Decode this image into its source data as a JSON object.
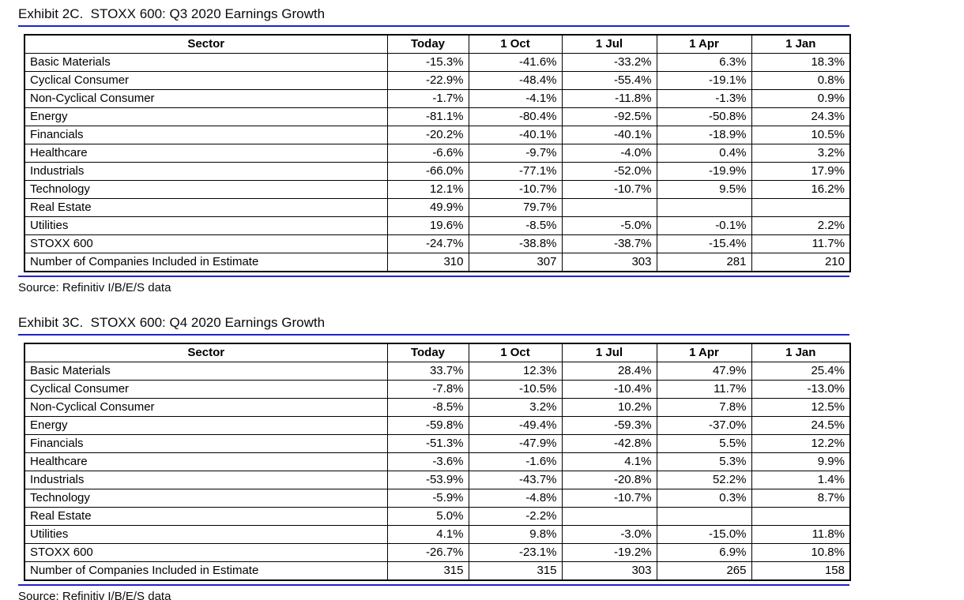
{
  "page": {
    "accent_blue": "#2222cc"
  },
  "exhibits": [
    {
      "title": "Exhibit 2C.  STOXX 600: Q3 2020 Earnings Growth",
      "columns": [
        "Sector",
        "Today",
        "1 Oct",
        "1 Jul",
        "1 Apr",
        "1 Jan"
      ],
      "rows": [
        {
          "label": "Basic Materials",
          "values": [
            "-15.3%",
            "-41.6%",
            "-33.2%",
            "6.3%",
            "18.3%"
          ]
        },
        {
          "label": "Cyclical Consumer",
          "values": [
            "-22.9%",
            "-48.4%",
            "-55.4%",
            "-19.1%",
            "0.8%"
          ]
        },
        {
          "label": "Non-Cyclical Consumer",
          "values": [
            "-1.7%",
            "-4.1%",
            "-11.8%",
            "-1.3%",
            "0.9%"
          ]
        },
        {
          "label": "Energy",
          "values": [
            "-81.1%",
            "-80.4%",
            "-92.5%",
            "-50.8%",
            "24.3%"
          ]
        },
        {
          "label": "Financials",
          "values": [
            "-20.2%",
            "-40.1%",
            "-40.1%",
            "-18.9%",
            "10.5%"
          ]
        },
        {
          "label": "Healthcare",
          "values": [
            "-6.6%",
            "-9.7%",
            "-4.0%",
            "0.4%",
            "3.2%"
          ]
        },
        {
          "label": "Industrials",
          "values": [
            "-66.0%",
            "-77.1%",
            "-52.0%",
            "-19.9%",
            "17.9%"
          ]
        },
        {
          "label": "Technology",
          "values": [
            "12.1%",
            "-10.7%",
            "-10.7%",
            "9.5%",
            "16.2%"
          ]
        },
        {
          "label": "Real Estate",
          "values": [
            "49.9%",
            "79.7%",
            "",
            "",
            ""
          ]
        },
        {
          "label": "Utilities",
          "values": [
            "19.6%",
            "-8.5%",
            "-5.0%",
            "-0.1%",
            "2.2%"
          ]
        },
        {
          "label": "STOXX 600",
          "values": [
            "-24.7%",
            "-38.8%",
            "-38.7%",
            "-15.4%",
            "11.7%"
          ]
        },
        {
          "label": "Number of Companies Included in Estimate",
          "values": [
            "310",
            "307",
            "303",
            "281",
            "210"
          ]
        }
      ],
      "source": "Source: Refinitiv I/B/E/S data"
    },
    {
      "title": "Exhibit 3C.  STOXX 600: Q4 2020 Earnings Growth",
      "columns": [
        "Sector",
        "Today",
        "1 Oct",
        "1 Jul",
        "1 Apr",
        "1 Jan"
      ],
      "rows": [
        {
          "label": "Basic Materials",
          "values": [
            "33.7%",
            "12.3%",
            "28.4%",
            "47.9%",
            "25.4%"
          ]
        },
        {
          "label": "Cyclical Consumer",
          "values": [
            "-7.8%",
            "-10.5%",
            "-10.4%",
            "11.7%",
            "-13.0%"
          ]
        },
        {
          "label": "Non-Cyclical Consumer",
          "values": [
            "-8.5%",
            "3.2%",
            "10.2%",
            "7.8%",
            "12.5%"
          ]
        },
        {
          "label": "Energy",
          "values": [
            "-59.8%",
            "-49.4%",
            "-59.3%",
            "-37.0%",
            "24.5%"
          ]
        },
        {
          "label": "Financials",
          "values": [
            "-51.3%",
            "-47.9%",
            "-42.8%",
            "5.5%",
            "12.2%"
          ]
        },
        {
          "label": "Healthcare",
          "values": [
            "-3.6%",
            "-1.6%",
            "4.1%",
            "5.3%",
            "9.9%"
          ]
        },
        {
          "label": "Industrials",
          "values": [
            "-53.9%",
            "-43.7%",
            "-20.8%",
            "52.2%",
            "1.4%"
          ]
        },
        {
          "label": "Technology",
          "values": [
            "-5.9%",
            "-4.8%",
            "-10.7%",
            "0.3%",
            "8.7%"
          ]
        },
        {
          "label": "Real Estate",
          "values": [
            "5.0%",
            "-2.2%",
            "",
            "",
            ""
          ]
        },
        {
          "label": "Utilities",
          "values": [
            "4.1%",
            "9.8%",
            "-3.0%",
            "-15.0%",
            "11.8%"
          ]
        },
        {
          "label": "STOXX 600",
          "values": [
            "-26.7%",
            "-23.1%",
            "-19.2%",
            "6.9%",
            "10.8%"
          ]
        },
        {
          "label": "Number of Companies Included in Estimate",
          "values": [
            "315",
            "315",
            "303",
            "265",
            "158"
          ]
        }
      ],
      "source": "Source: Refinitiv I/B/E/S data"
    }
  ],
  "chart_data": [
    {
      "type": "table",
      "title": "Exhibit 2C. STOXX 600: Q3 2020 Earnings Growth",
      "columns": [
        "Sector",
        "Today",
        "1 Oct",
        "1 Jul",
        "1 Apr",
        "1 Jan"
      ],
      "rows": [
        [
          "Basic Materials",
          -15.3,
          -41.6,
          -33.2,
          6.3,
          18.3
        ],
        [
          "Cyclical Consumer",
          -22.9,
          -48.4,
          -55.4,
          -19.1,
          0.8
        ],
        [
          "Non-Cyclical Consumer",
          -1.7,
          -4.1,
          -11.8,
          -1.3,
          0.9
        ],
        [
          "Energy",
          -81.1,
          -80.4,
          -92.5,
          -50.8,
          24.3
        ],
        [
          "Financials",
          -20.2,
          -40.1,
          -40.1,
          -18.9,
          10.5
        ],
        [
          "Healthcare",
          -6.6,
          -9.7,
          -4.0,
          0.4,
          3.2
        ],
        [
          "Industrials",
          -66.0,
          -77.1,
          -52.0,
          -19.9,
          17.9
        ],
        [
          "Technology",
          12.1,
          -10.7,
          -10.7,
          9.5,
          16.2
        ],
        [
          "Real Estate",
          49.9,
          79.7,
          null,
          null,
          null
        ],
        [
          "Utilities",
          19.6,
          -8.5,
          -5.0,
          -0.1,
          2.2
        ],
        [
          "STOXX 600",
          -24.7,
          -38.8,
          -38.7,
          -15.4,
          11.7
        ],
        [
          "Number of Companies Included in Estimate",
          310,
          307,
          303,
          281,
          210
        ]
      ]
    },
    {
      "type": "table",
      "title": "Exhibit 3C. STOXX 600: Q4 2020 Earnings Growth",
      "columns": [
        "Sector",
        "Today",
        "1 Oct",
        "1 Jul",
        "1 Apr",
        "1 Jan"
      ],
      "rows": [
        [
          "Basic Materials",
          33.7,
          12.3,
          28.4,
          47.9,
          25.4
        ],
        [
          "Cyclical Consumer",
          -7.8,
          -10.5,
          -10.4,
          11.7,
          -13.0
        ],
        [
          "Non-Cyclical Consumer",
          -8.5,
          3.2,
          10.2,
          7.8,
          12.5
        ],
        [
          "Energy",
          -59.8,
          -49.4,
          -59.3,
          -37.0,
          24.5
        ],
        [
          "Financials",
          -51.3,
          -47.9,
          -42.8,
          5.5,
          12.2
        ],
        [
          "Healthcare",
          -3.6,
          -1.6,
          4.1,
          5.3,
          9.9
        ],
        [
          "Industrials",
          -53.9,
          -43.7,
          -20.8,
          52.2,
          1.4
        ],
        [
          "Technology",
          -5.9,
          -4.8,
          -10.7,
          0.3,
          8.7
        ],
        [
          "Real Estate",
          5.0,
          -2.2,
          null,
          null,
          null
        ],
        [
          "Utilities",
          4.1,
          9.8,
          -3.0,
          -15.0,
          11.8
        ],
        [
          "STOXX 600",
          -26.7,
          -23.1,
          -19.2,
          6.9,
          10.8
        ],
        [
          "Number of Companies Included in Estimate",
          315,
          315,
          303,
          265,
          158
        ]
      ]
    }
  ]
}
